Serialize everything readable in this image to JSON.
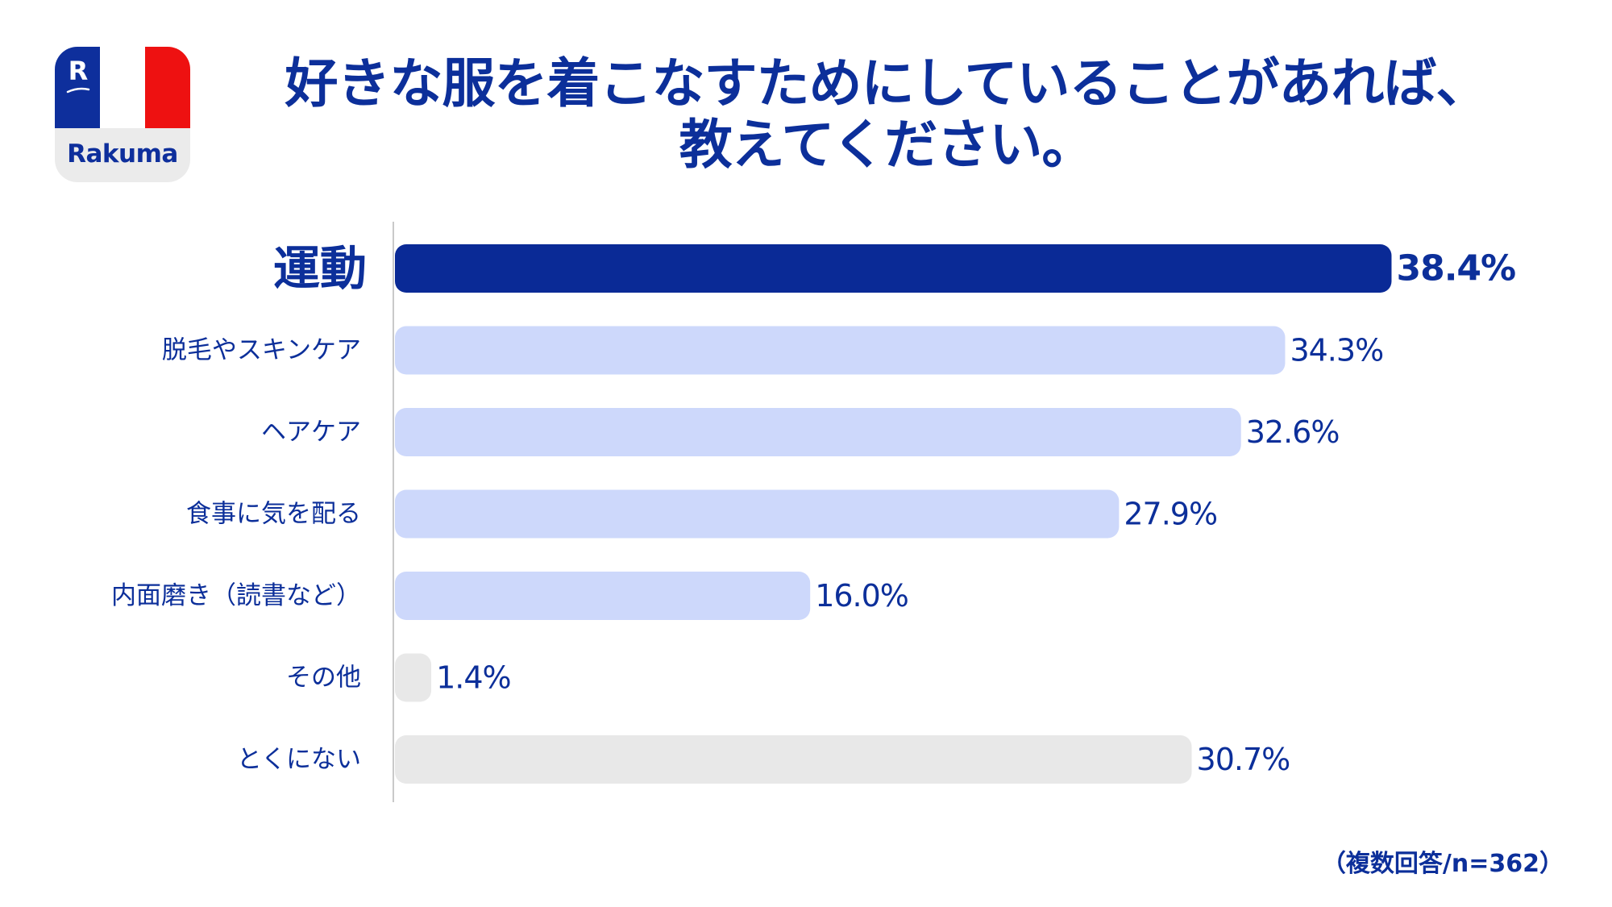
{
  "logo": {
    "mark": "R",
    "text": "Rakuma"
  },
  "title": {
    "line1": "好きな服を着こなすためにしていることがあれば、",
    "line2": "教えてください。"
  },
  "note": "（複数回答/n=362）",
  "colors": {
    "highlight_bar": "#0a2a96",
    "bar": "#cdd8fb",
    "other_bar": "#e8e8e8",
    "text": "#0c2f9a"
  },
  "chart_data": {
    "type": "bar",
    "orientation": "horizontal",
    "categories": [
      "運動",
      "脱毛やスキンケア",
      "ヘアケア",
      "食事に気を配る",
      "内面磨き（読書など）",
      "その他",
      "とくにない"
    ],
    "values": [
      38.4,
      34.3,
      32.6,
      27.9,
      16.0,
      1.4,
      30.7
    ],
    "value_labels": [
      "38.4%",
      "34.3%",
      "32.6%",
      "27.9%",
      "16.0%",
      "1.4%",
      "30.7%"
    ],
    "highlight_index": 0,
    "gray_indices": [
      5,
      6
    ],
    "unit": "%",
    "xlim": [
      0,
      40
    ]
  }
}
